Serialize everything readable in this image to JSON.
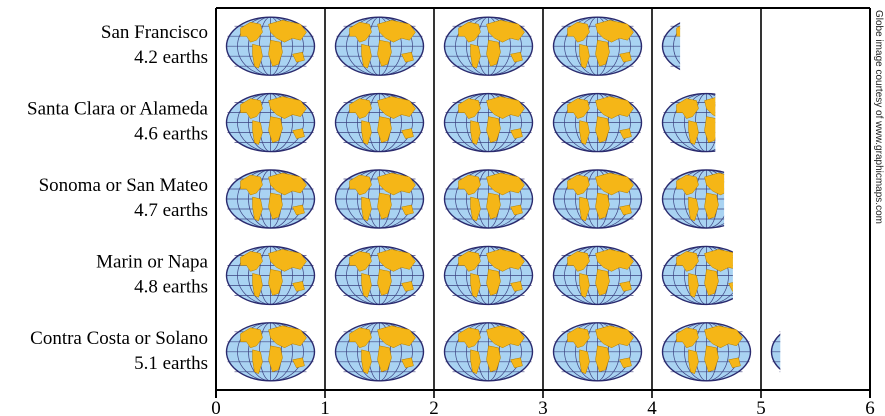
{
  "chart_data": {
    "type": "bar",
    "categories": [
      "San Francisco",
      "Santa Clara or Alameda",
      "Sonoma or San Mateo",
      "Marin or Napa",
      "Contra Costa or Solano"
    ],
    "value_labels": [
      "4.2 earths",
      "4.6 earths",
      "4.7 earths",
      "4.8 earths",
      "5.1 earths"
    ],
    "values": [
      4.2,
      4.6,
      4.7,
      4.8,
      5.1
    ],
    "xlim": [
      0,
      6
    ],
    "xticks": [
      "0",
      "1",
      "2",
      "3",
      "4",
      "5",
      "6"
    ],
    "grid": "vertical",
    "marker": "globe-icon",
    "credit": "Globe image courtesy of www.graphicmaps.com",
    "colors": {
      "ocean": "#a9d3f2",
      "land": "#f5b617",
      "outline": "#2a2a6e",
      "grid": "#000000"
    }
  }
}
